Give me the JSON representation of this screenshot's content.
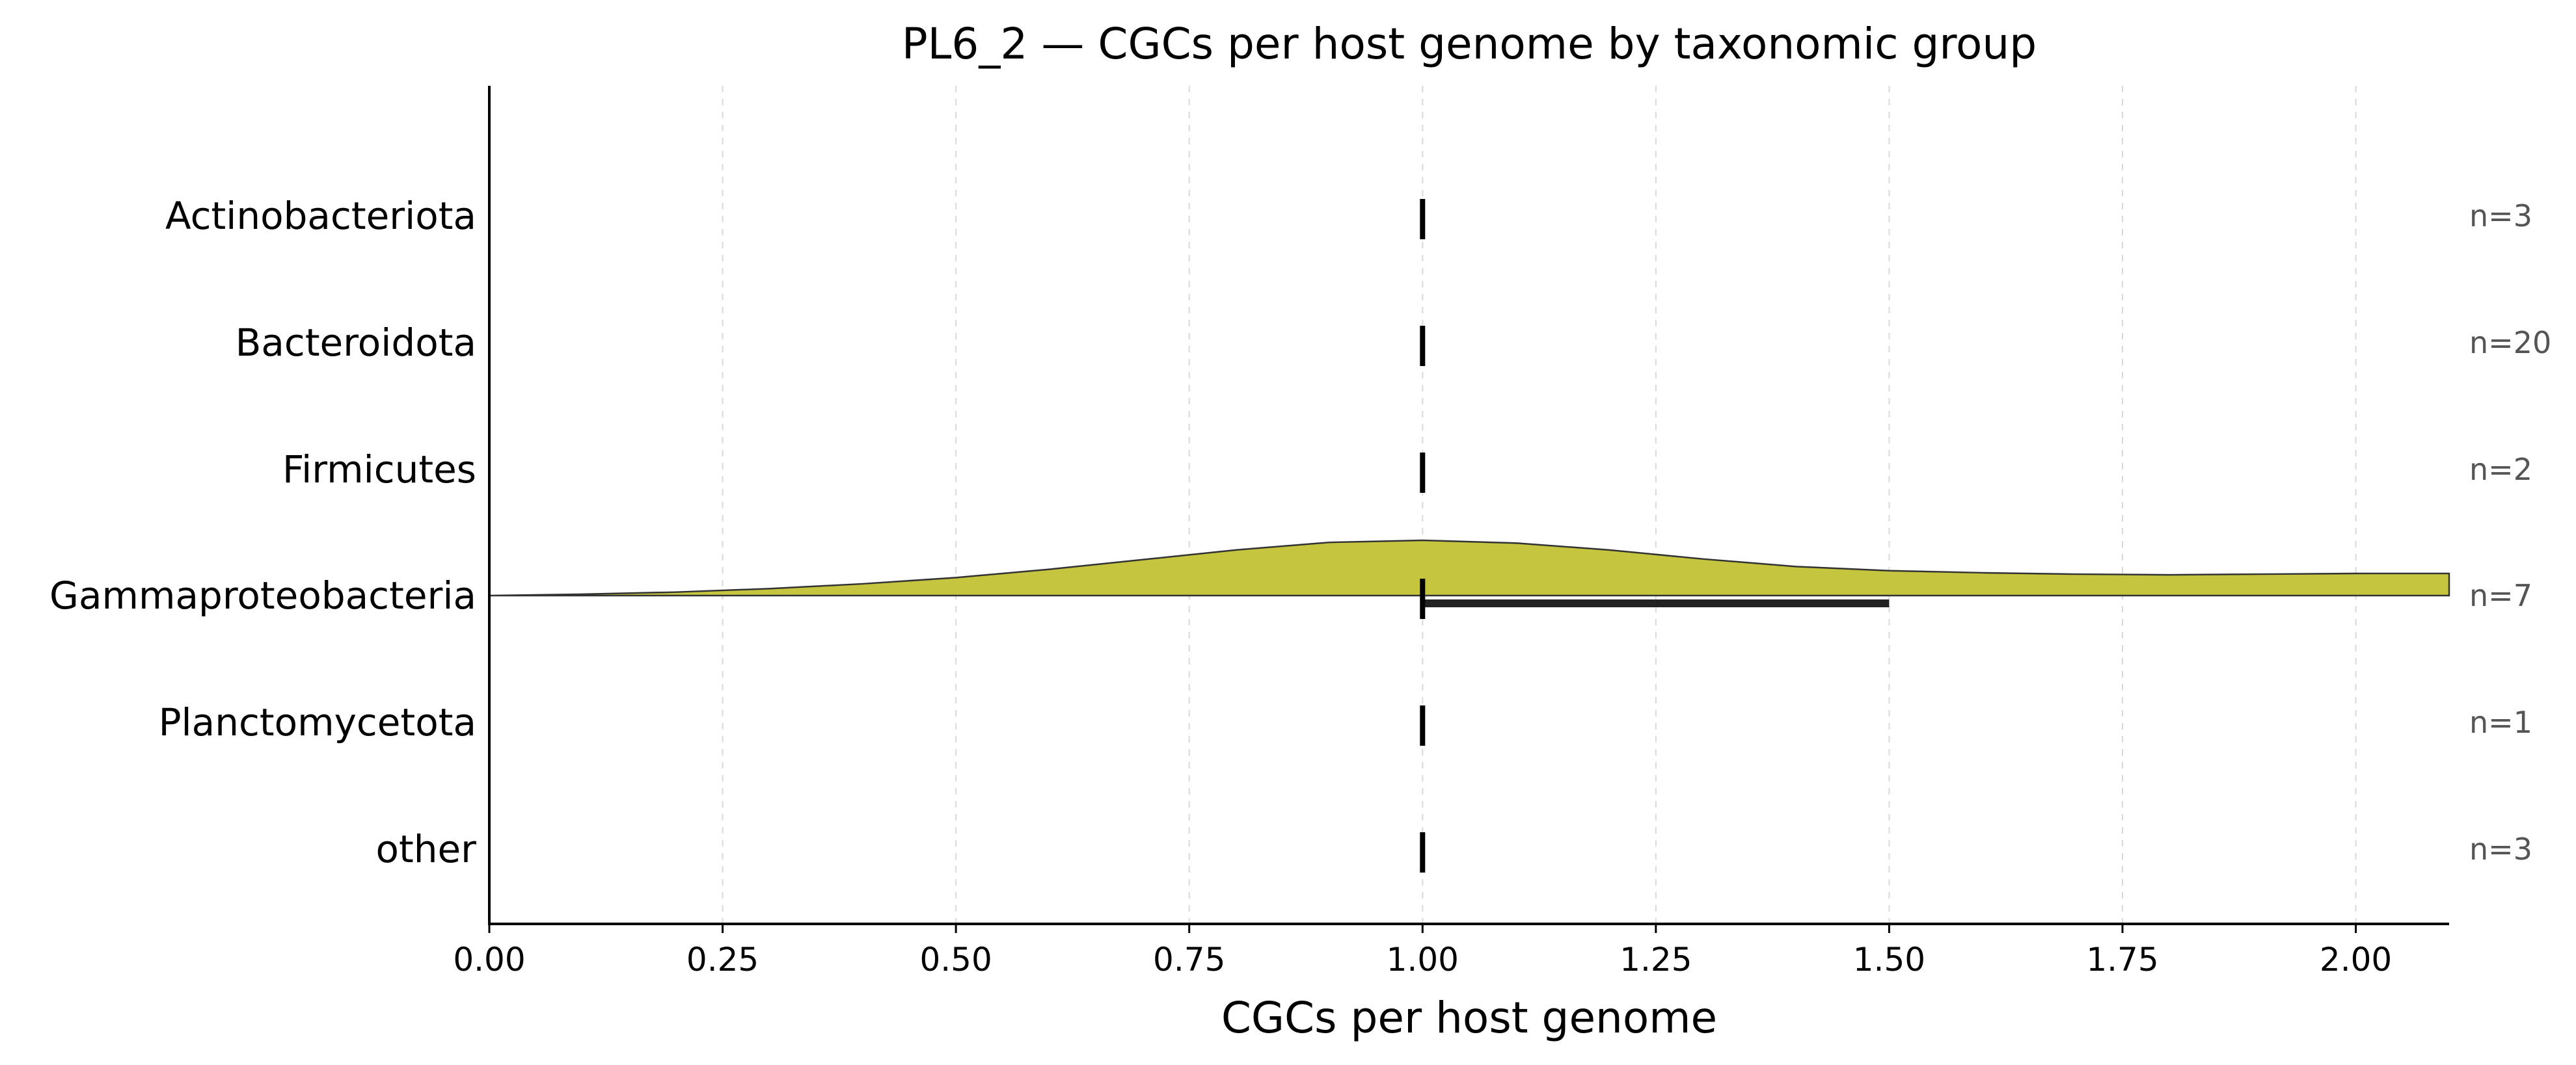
{
  "chart_data": {
    "type": "violin",
    "title": "PL6_2 — CGCs per host genome by taxonomic group",
    "xlabel": "CGCs per host genome",
    "ylabel": "",
    "xlim": [
      0,
      2.1
    ],
    "xticks": [
      0.0,
      0.25,
      0.5,
      0.75,
      1.0,
      1.25,
      1.5,
      1.75,
      2.0
    ],
    "xtick_labels": [
      "0.00",
      "0.25",
      "0.50",
      "0.75",
      "1.00",
      "1.25",
      "1.50",
      "1.75",
      "2.00"
    ],
    "grid": "vertical dashed",
    "fill_color": "#c5c53f",
    "categories": [
      {
        "name": "Actinobacteriota",
        "n_label": "n=3",
        "median": 1.0
      },
      {
        "name": "Bacteroidota",
        "n_label": "n=20",
        "median": 1.0
      },
      {
        "name": "Firmicutes",
        "n_label": "n=2",
        "median": 1.0
      },
      {
        "name": "Gammaproteobacteria",
        "n_label": "n=7",
        "median": 1.0,
        "q1": 1.0,
        "q3": 1.5,
        "density": {
          "x": [
            0.0,
            0.1,
            0.2,
            0.3,
            0.4,
            0.5,
            0.6,
            0.7,
            0.8,
            0.9,
            1.0,
            1.1,
            1.2,
            1.3,
            1.4,
            1.5,
            1.6,
            1.7,
            1.8,
            1.9,
            2.0,
            2.1
          ],
          "y": [
            0.0,
            0.02,
            0.05,
            0.1,
            0.17,
            0.26,
            0.38,
            0.52,
            0.66,
            0.77,
            0.8,
            0.76,
            0.66,
            0.53,
            0.42,
            0.36,
            0.33,
            0.31,
            0.3,
            0.31,
            0.32,
            0.32
          ]
        }
      },
      {
        "name": "Planctomycetota",
        "n_label": "n=1",
        "median": 1.0
      },
      {
        "name": "other",
        "n_label": "n=3",
        "median": 1.0
      }
    ]
  }
}
